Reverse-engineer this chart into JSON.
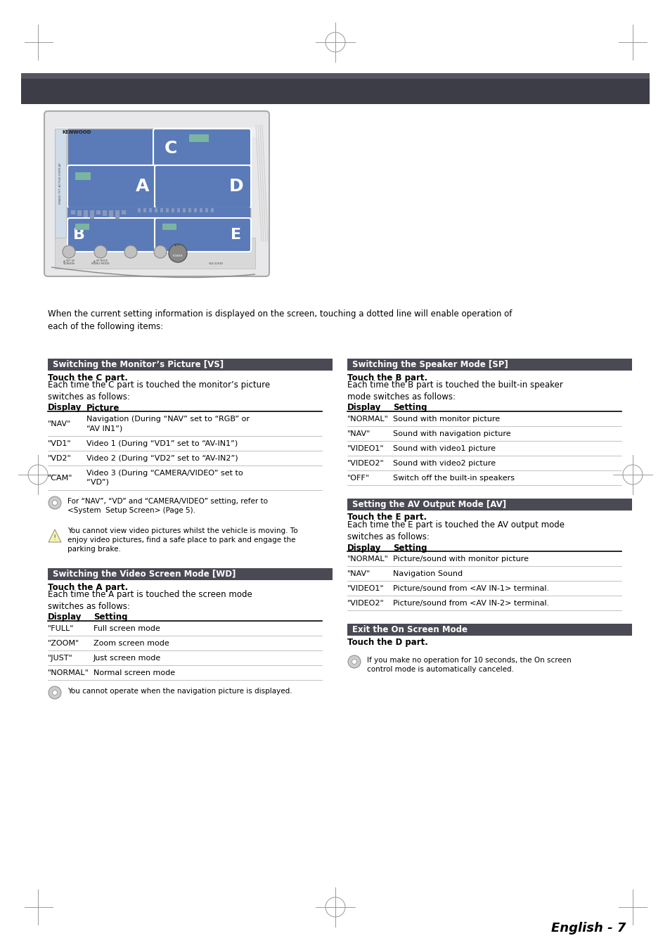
{
  "page_bg": "#ffffff",
  "header_bar1_color": "#555560",
  "header_bar2_color": "#3d3d48",
  "section_header_color": "#4a4a55",
  "section_header_text_color": "#ffffff",
  "device_bg": "#5a7ab8",
  "device_casing": "#e8e8e8",
  "device_border": "#aaaaaa",
  "device_button_color": "#7ab5a0",
  "intro_text": "When the current setting information is displayed on the screen, touching a dotted line will enable operation of\neach of the following items:",
  "section1_title": "Switching the Monitor’s Picture [VS]",
  "section1_sub1": "Touch the C part.",
  "section1_body": "Each time the C part is touched the monitor’s picture\nswitches as follows:",
  "section1_col1": "Display",
  "section1_col2": "Picture",
  "section1_rows": [
    [
      "\"NAV\"",
      "Navigation (During “NAV” set to “RGB” or\n“AV IN1”)"
    ],
    [
      "\"VD1\"",
      "Video 1 (During “VD1” set to “AV-IN1”)"
    ],
    [
      "\"VD2\"",
      "Video 2 (During “VD2” set to “AV-IN2”)"
    ],
    [
      "\"CAM\"",
      "Video 3 (During “CAMERA/VIDEO” set to\n“VD”)"
    ]
  ],
  "section1_note1": "For “NAV”, “VD” and “CAMERA/VIDEO” setting, refer to\n<System  Setup Screen> (Page 5).",
  "section1_note2": "You cannot view video pictures whilst the vehicle is moving. To\nenjoy video pictures, find a safe place to park and engage the\nparking brake.",
  "section2_title": "Switching the Video Screen Mode [WD]",
  "section2_sub1": "Touch the A part.",
  "section2_body": "Each time the A part is touched the screen mode\nswitches as follows:",
  "section2_col1": "Display",
  "section2_col2": "Setting",
  "section2_rows": [
    [
      "\"FULL\"",
      "Full screen mode"
    ],
    [
      "\"ZOOM\"",
      "Zoom screen mode"
    ],
    [
      "\"JUST\"",
      "Just screen mode"
    ],
    [
      "\"NORMAL\"",
      "Normal screen mode"
    ]
  ],
  "section2_note": "You cannot operate when the navigation picture is displayed.",
  "section3_title": "Switching the Speaker Mode [SP]",
  "section3_sub1": "Touch the B part.",
  "section3_body": "Each time the B part is touched the built-in speaker\nmode switches as follows:",
  "section3_col1": "Display",
  "section3_col2": "Setting",
  "section3_rows": [
    [
      "\"NORMAL\"",
      "Sound with monitor picture"
    ],
    [
      "\"NAV\"",
      "Sound with navigation picture"
    ],
    [
      "\"VIDEO1\"",
      "Sound with video1 picture"
    ],
    [
      "\"VIDEO2\"",
      "Sound with video2 picture"
    ],
    [
      "\"OFF\"",
      "Switch off the built-in speakers"
    ]
  ],
  "section4_title": "Setting the AV Output Mode [AV]",
  "section4_sub1": "Touch the E part.",
  "section4_body": "Each time the E part is touched the AV output mode\nswitches as follows:",
  "section4_col1": "Display",
  "section4_col2": "Setting",
  "section4_rows": [
    [
      "\"NORMAL\"",
      "Picture/sound with monitor picture"
    ],
    [
      "\"NAV\"",
      "Navigation Sound"
    ],
    [
      "\"VIDEO1\"",
      "Picture/sound from <AV IN-1> terminal."
    ],
    [
      "\"VIDEO2\"",
      "Picture/sound from <AV IN-2> terminal."
    ]
  ],
  "section5_title": "Exit the On Screen Mode",
  "section5_sub1": "Touch the D part.",
  "section5_note": "If you make no operation for 10 seconds, the On screen\ncontrol mode is automatically canceled.",
  "footer_text": "English - 7"
}
